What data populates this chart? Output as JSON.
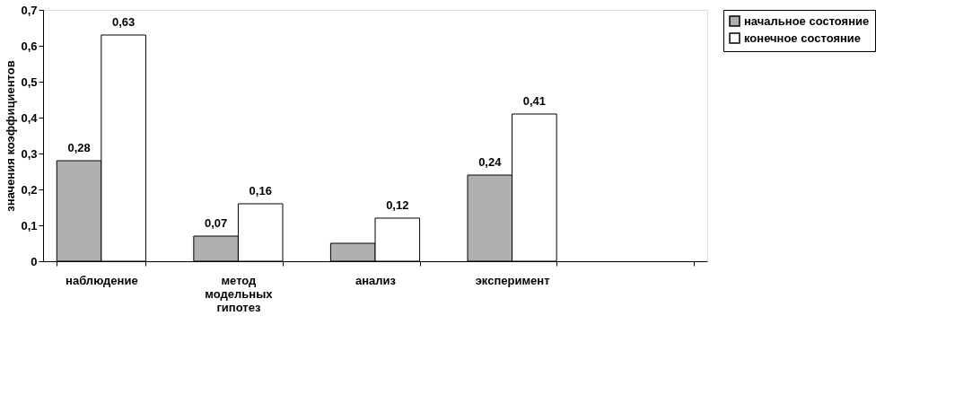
{
  "chart_data": {
    "type": "bar",
    "ylabel": "значения коэффициентов",
    "categories": [
      "наблюдение",
      "метод модельных гипотез",
      "анализ",
      "эксперимент",
      null
    ],
    "series": [
      {
        "name": "начальное состояние",
        "color": "#b0b0b0",
        "values": [
          0.28,
          0.07,
          0.05,
          0.24,
          null
        ],
        "value_labels": [
          "0,28",
          "0,07",
          null,
          "0,24",
          null
        ]
      },
      {
        "name": "конечное состояние",
        "color": "#ffffff",
        "values": [
          0.63,
          0.16,
          0.12,
          0.41,
          null
        ],
        "value_labels": [
          "0,63",
          "0,16",
          "0,12",
          "0,41",
          null
        ]
      }
    ],
    "ylim": [
      0,
      0.7
    ],
    "yticks": [
      {
        "value": 0,
        "label": "0"
      },
      {
        "value": 0.1,
        "label": "0,1"
      },
      {
        "value": 0.2,
        "label": "0,2"
      },
      {
        "value": 0.3,
        "label": "0,3"
      },
      {
        "value": 0.4,
        "label": "0,4"
      },
      {
        "value": 0.5,
        "label": "0,5"
      },
      {
        "value": 0.6,
        "label": "0,6"
      },
      {
        "value": 0.7,
        "label": "0,7"
      }
    ],
    "grid": false,
    "legend": "top right"
  }
}
